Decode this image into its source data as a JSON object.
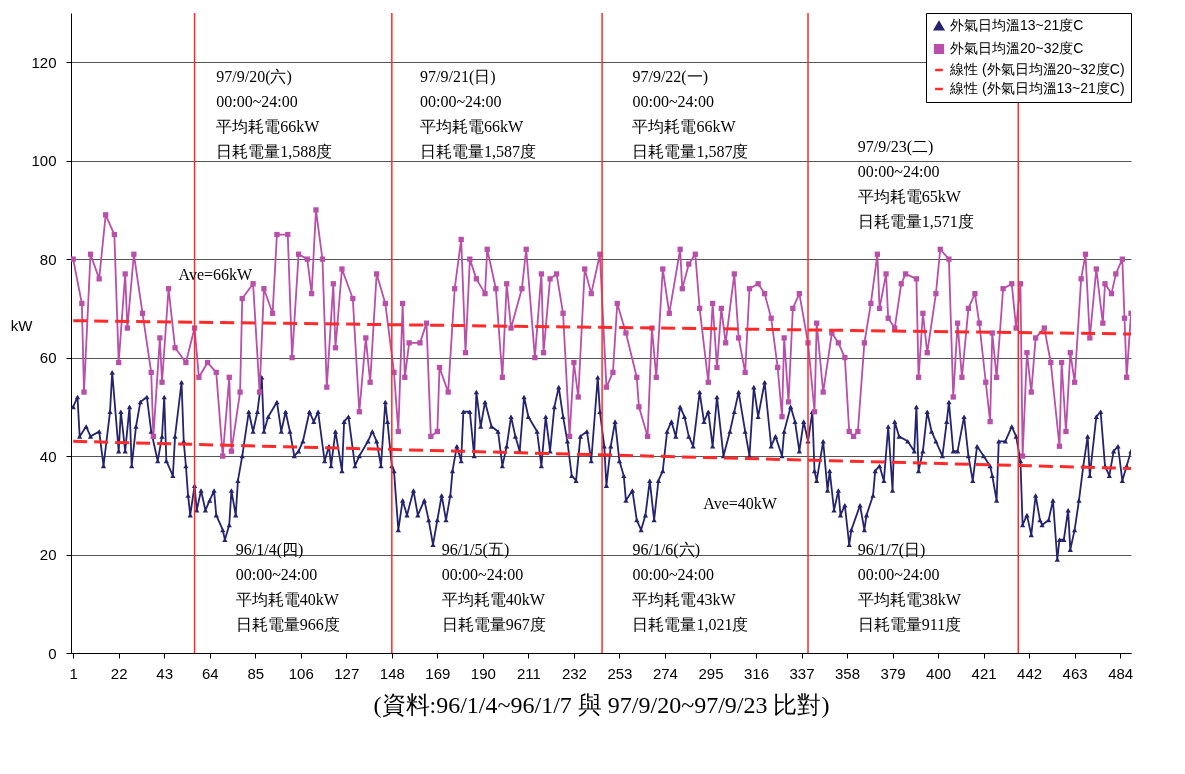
{
  "chart_data": {
    "type": "line",
    "xlabel": "(資料:96/1/4~96/1/7 與 97/9/20~97/9/23 比對)",
    "ylabel": "kW",
    "xlim": [
      0,
      489
    ],
    "xticks": [
      1,
      22,
      43,
      64,
      85,
      106,
      127,
      148,
      169,
      190,
      211,
      232,
      253,
      274,
      295,
      316,
      337,
      358,
      379,
      400,
      421,
      442,
      463,
      484
    ],
    "ylim": [
      0,
      130
    ],
    "yticks": [
      0,
      20,
      40,
      60,
      80,
      100,
      120
    ],
    "grid": "y",
    "legend": "top right",
    "series": [
      {
        "name": "外氣日均溫13~21度C",
        "color": "#24246e",
        "marker": "triangle",
        "line_style": "solid",
        "x": [
          1,
          3,
          4,
          7,
          9,
          13,
          15,
          18,
          19,
          22,
          23,
          25,
          27,
          28,
          30,
          32,
          35,
          37,
          40,
          42,
          43,
          44,
          47,
          48,
          51,
          52,
          53,
          54,
          55,
          57,
          58,
          60,
          62,
          64,
          66,
          67,
          70,
          71,
          73,
          74,
          76,
          77,
          79,
          82,
          84,
          86,
          88,
          89,
          91,
          95,
          97,
          99,
          101,
          103,
          105,
          107,
          110,
          112,
          114,
          117,
          119,
          120,
          122,
          125,
          126,
          128,
          131,
          133,
          137,
          139,
          141,
          143,
          145,
          146,
          148,
          149,
          151,
          153,
          155,
          158,
          160,
          163,
          165,
          167,
          169,
          171,
          173,
          175,
          176,
          178,
          180,
          181,
          184,
          186,
          187,
          189,
          191,
          194,
          197,
          199,
          201,
          203,
          205,
          207,
          209,
          211,
          215,
          217,
          219,
          221,
          223,
          225,
          227,
          229,
          231,
          233,
          235,
          238,
          240,
          243,
          244,
          246,
          247,
          249,
          251,
          253,
          255,
          256,
          259,
          261,
          263,
          265,
          267,
          269,
          271,
          273,
          275,
          277,
          279,
          281,
          283,
          285,
          287,
          290,
          292,
          294,
          296,
          298,
          301,
          304,
          306,
          308,
          311,
          313,
          315,
          317,
          320,
          323,
          325,
          328,
          329,
          332,
          334,
          336,
          338,
          340,
          342,
          343,
          344,
          347,
          349,
          350,
          352,
          354,
          355,
          357,
          359,
          360,
          364,
          366,
          367,
          370,
          371,
          373,
          375,
          377,
          379,
          380,
          382,
          386,
          389,
          390,
          391,
          393,
          395,
          397,
          399,
          402,
          404,
          405,
          407,
          409,
          412,
          414,
          416,
          418,
          421,
          424,
          425,
          427,
          428,
          431,
          434,
          436,
          438,
          439,
          441,
          443,
          445,
          447,
          448,
          451,
          453,
          455,
          456,
          458,
          460,
          461,
          463,
          465,
          467,
          469,
          470,
          473,
          475,
          477,
          479,
          481,
          483,
          485,
          487,
          489
        ],
        "values": [
          50,
          52,
          44,
          46,
          44,
          45,
          38,
          49,
          57,
          41,
          49,
          41,
          50,
          38,
          46,
          51,
          52,
          45,
          39,
          44,
          52,
          39,
          36,
          44,
          55,
          43,
          38,
          32,
          28,
          34,
          29,
          33,
          29,
          31,
          33,
          28,
          25,
          23,
          26,
          33,
          28,
          35,
          40,
          49,
          45,
          49,
          56,
          45,
          48,
          51,
          45,
          49,
          45,
          40,
          41,
          43,
          49,
          47,
          49,
          39,
          42,
          38,
          45,
          37,
          47,
          48,
          38,
          40,
          43,
          45,
          43,
          38,
          51,
          47,
          38,
          37,
          25,
          31,
          28,
          33,
          28,
          31,
          27,
          22,
          27,
          32,
          27,
          32,
          37,
          42,
          39,
          49,
          49,
          40,
          53,
          46,
          51,
          46,
          45,
          38,
          42,
          48,
          44,
          41,
          52,
          48,
          45,
          38,
          48,
          41,
          50,
          54,
          48,
          43,
          36,
          35,
          44,
          45,
          39,
          56,
          49,
          42,
          34,
          42,
          47,
          39,
          36,
          31,
          33,
          27,
          25,
          28,
          35,
          27,
          35,
          37,
          45,
          47,
          44,
          50,
          48,
          44,
          42,
          53,
          47,
          49,
          42,
          52,
          40,
          45,
          49,
          53,
          45,
          40,
          54,
          48,
          55,
          42,
          44,
          40,
          45,
          50,
          47,
          41,
          47,
          43,
          49,
          37,
          35,
          43,
          33,
          37,
          29,
          33,
          28,
          30,
          22,
          25,
          30,
          25,
          28,
          32,
          37,
          38,
          35,
          46,
          33,
          47,
          44,
          43,
          41,
          50,
          37,
          41,
          49,
          45,
          43,
          40,
          47,
          51,
          41,
          41,
          48,
          40,
          35,
          42,
          40,
          38,
          36,
          31,
          43,
          43,
          46,
          44,
          39,
          26,
          28,
          24,
          32,
          27,
          26,
          27,
          31,
          19,
          23,
          23,
          29,
          21,
          25,
          31,
          38,
          44,
          36,
          48,
          49,
          38,
          36,
          41,
          42,
          35,
          38,
          41
        ]
      },
      {
        "name": "外氣日均溫20~32度C",
        "color": "#b84fa8",
        "marker": "square",
        "line_style": "solid",
        "x": [
          1,
          5,
          6,
          9,
          13,
          16,
          20,
          22,
          25,
          26,
          29,
          33,
          37,
          38,
          41,
          42,
          45,
          48,
          53,
          57,
          59,
          63,
          67,
          70,
          73,
          74,
          78,
          79,
          84,
          87,
          89,
          93,
          95,
          100,
          102,
          105,
          109,
          111,
          113,
          116,
          118,
          121,
          122,
          125,
          130,
          133,
          136,
          138,
          141,
          145,
          149,
          151,
          153,
          154,
          156,
          161,
          164,
          166,
          169,
          170,
          174,
          177,
          180,
          182,
          184,
          187,
          191,
          192,
          196,
          199,
          201,
          203,
          208,
          210,
          214,
          217,
          218,
          221,
          224,
          227,
          230,
          232,
          234,
          237,
          240,
          244,
          247,
          250,
          252,
          256,
          261,
          262,
          266,
          268,
          270,
          273,
          276,
          281,
          282,
          285,
          288,
          290,
          294,
          296,
          298,
          300,
          302,
          306,
          308,
          311,
          313,
          317,
          320,
          323,
          326,
          328,
          329,
          331,
          333,
          336,
          340,
          343,
          344,
          347,
          351,
          354,
          357,
          359,
          361,
          363,
          366,
          369,
          372,
          373,
          376,
          377,
          380,
          383,
          385,
          390,
          391,
          393,
          395,
          399,
          401,
          405,
          407,
          409,
          411,
          414,
          417,
          419,
          422,
          424,
          425,
          427,
          430,
          434,
          436,
          438,
          439,
          441,
          443,
          445,
          449,
          452,
          456,
          457,
          459,
          461,
          463,
          466,
          468,
          470,
          473,
          476,
          477,
          480,
          482,
          485,
          486,
          487,
          489
        ],
        "values": [
          80,
          71,
          53,
          81,
          76,
          89,
          85,
          59,
          77,
          66,
          81,
          69,
          57,
          44,
          64,
          55,
          74,
          62,
          59,
          66,
          56,
          59,
          57,
          40,
          56,
          41,
          53,
          72,
          75,
          53,
          74,
          69,
          85,
          85,
          60,
          81,
          80,
          73,
          90,
          80,
          54,
          75,
          62,
          78,
          72,
          49,
          64,
          55,
          77,
          71,
          57,
          45,
          71,
          56,
          63,
          63,
          67,
          44,
          45,
          58,
          53,
          74,
          84,
          61,
          80,
          76,
          73,
          82,
          74,
          56,
          75,
          66,
          74,
          82,
          60,
          77,
          61,
          76,
          77,
          69,
          44,
          59,
          52,
          78,
          73,
          81,
          54,
          57,
          71,
          65,
          56,
          50,
          44,
          66,
          56,
          78,
          69,
          82,
          74,
          79,
          81,
          70,
          55,
          71,
          58,
          70,
          63,
          77,
          64,
          57,
          74,
          75,
          73,
          68,
          58,
          48,
          64,
          51,
          70,
          73,
          63,
          49,
          67,
          53,
          65,
          63,
          60,
          45,
          44,
          45,
          63,
          71,
          81,
          70,
          77,
          68,
          66,
          75,
          77,
          76,
          56,
          69,
          61,
          73,
          82,
          80,
          52,
          67,
          56,
          70,
          73,
          67,
          55,
          47,
          65,
          56,
          74,
          75,
          66,
          75,
          40,
          61,
          53,
          64,
          66,
          59,
          42,
          59,
          45,
          61,
          55,
          76,
          81,
          64,
          78,
          67,
          75,
          73,
          77,
          80,
          68,
          56,
          69
        ]
      },
      {
        "name": "線性 (外氣日均溫20~32度C)",
        "color": "#ff2a2a",
        "marker": "none",
        "line_style": "dashed",
        "x": [
          1,
          489
        ],
        "values": [
          67.5,
          64.8
        ]
      },
      {
        "name": "線性 (外氣日均溫13~21度C)",
        "color": "#ff2a2a",
        "marker": "none",
        "line_style": "dashed",
        "x": [
          1,
          489
        ],
        "values": [
          43,
          37.5
        ]
      }
    ],
    "ref_lines": [
      {
        "axis": "x",
        "value": 57,
        "color": "#ff2a2a"
      },
      {
        "axis": "x",
        "value": 148,
        "color": "#ff2a2a"
      },
      {
        "axis": "x",
        "value": 245,
        "color": "#ff2a2a"
      },
      {
        "axis": "x",
        "value": 340,
        "color": "#ff2a2a"
      },
      {
        "axis": "x",
        "value": 437,
        "color": "#ff2a2a"
      }
    ],
    "annotations": [
      "97/9/20(六)\n00:00~24:00\n平均耗電66kW\n日耗電量1,588度",
      "97/9/21(日)\n00:00~24:00\n平均耗電66kW\n日耗電量1,587度",
      "97/9/22(一)\n00:00~24:00\n平均耗電66kW\n日耗電量1,587度",
      "97/9/23(二)\n00:00~24:00\n平均耗電65kW\n日耗電量1,571度",
      "96/1/4(四)\n00:00~24:00\n平均耗電40kW\n日耗電量966度",
      "96/1/5(五)\n00:00~24:00\n平均耗電40kW\n日耗電量967度",
      "96/1/6(六)\n00:00~24:00\n平均耗電43kW\n日耗電量1,021度",
      "96/1/7(日)\n00:00~24:00\n平均耗電38kW\n日耗電量911度",
      {
        "text": "Ave=66kW",
        "x": 51,
        "y": 67.3
      },
      {
        "text": "Ave=40kW",
        "x": 288,
        "y": 40
      }
    ]
  }
}
